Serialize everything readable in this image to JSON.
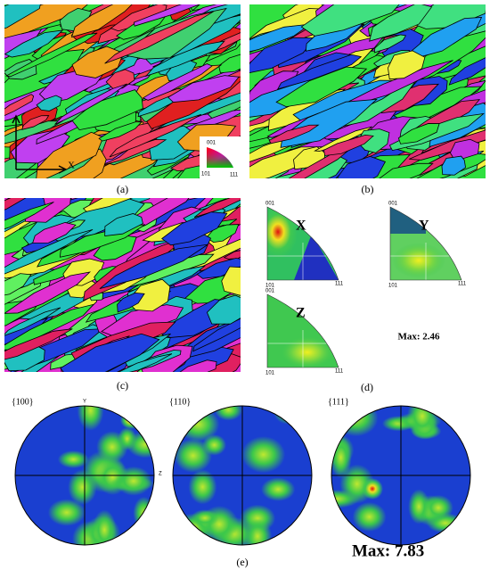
{
  "maps": [
    {
      "label": "(a)"
    },
    {
      "label": "(b)"
    },
    {
      "label": "(c)"
    }
  ],
  "map_axis": "X",
  "color_key": {
    "top": "001",
    "left": "101",
    "right": "111"
  },
  "ipf": {
    "label": "(d)",
    "figures": [
      {
        "name": "X",
        "top": "001",
        "left": "101",
        "right": "111"
      },
      {
        "name": "Y",
        "top": "001",
        "left": "101",
        "right": "111"
      },
      {
        "name": "Z",
        "top": "001",
        "left": "101",
        "right": "111"
      }
    ],
    "max": "Max: 2.46"
  },
  "pole_figures": {
    "label": "(e)",
    "figures": [
      {
        "name": "{100}"
      },
      {
        "name": "{110}"
      },
      {
        "name": "{111}"
      }
    ],
    "axis_top": "Y",
    "axis_right": "Z",
    "max": "Max: 7.83"
  }
}
